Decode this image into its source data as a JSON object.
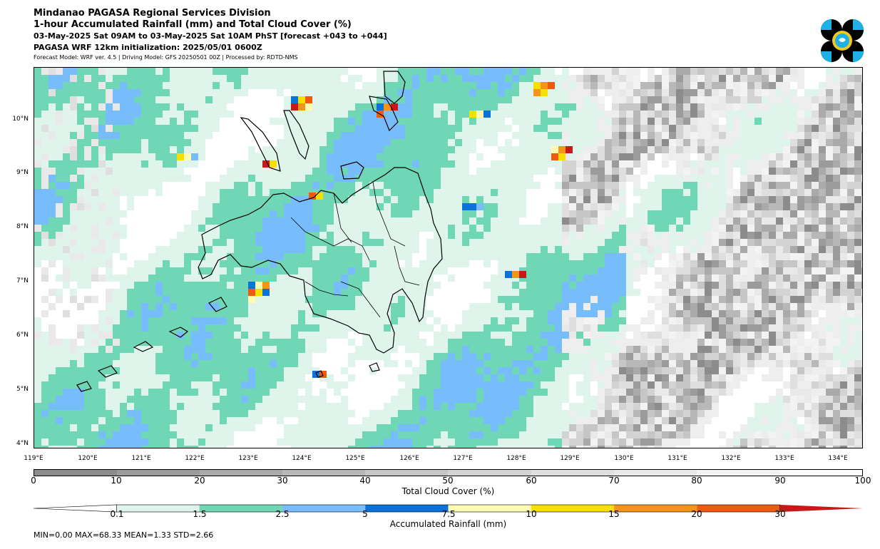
{
  "header": {
    "title_line1": "Mindanao PAGASA Regional Services Division",
    "title_line2": "1-hour Accumulated Rainfall (mm) and Total Cloud Cover (%)",
    "title_line3": "03-May-2025 Sat 09AM to 03-May-2025 Sat 10AM PhST [forecast +043 to +044]",
    "title_line4": "PAGASA WRF 12km initialization: 2025/05/01 0600Z",
    "title_line5": "Forecast Model: WRF ver. 4.5 | Driving Model: GFS 20250501 00Z | Processed by: RDTD-NMS"
  },
  "logo": {
    "icon": "pagasa-logo-icon",
    "colors": [
      "#000000",
      "#1eb1e6",
      "#f2c81f"
    ]
  },
  "map": {
    "latitude_labels": [
      "10°N",
      "9°N",
      "8°N",
      "7°N",
      "6°N",
      "5°N",
      "4°N"
    ],
    "longitude_labels": [
      "119°E",
      "120°E",
      "121°E",
      "122°E",
      "123°E",
      "124°E",
      "125°E",
      "126°E",
      "127°E",
      "128°E",
      "129°E",
      "130°E",
      "131°E",
      "132°E",
      "133°E",
      "134°E"
    ]
  },
  "cloud_colorbar": {
    "label": "Total Cloud Cover (%)",
    "ticks": [
      "0",
      "10",
      "20",
      "30",
      "40",
      "50",
      "60",
      "70",
      "80",
      "90",
      "100"
    ],
    "colors": [
      "#8c8c8c",
      "#9b9b9b",
      "#aaaaaa",
      "#b8b8b8",
      "#c6c6c6",
      "#d3d3d3",
      "#dfdfdf",
      "#e9e9e9",
      "#f3f3f3",
      "#fbfbfb"
    ]
  },
  "rain_colorbar": {
    "label": "Accumulated Rainfall (mm)",
    "ticks": [
      "0.1",
      "1.5",
      "2.5",
      "5",
      "7.5",
      "10",
      "15",
      "20",
      "30"
    ],
    "colors": [
      "#dff5ec",
      "#6fd7b5",
      "#77bdfb",
      "#0a72d8",
      "#fffcb2",
      "#f6e000",
      "#f4941a",
      "#ee5a10",
      "#c81818"
    ]
  },
  "stats": "MIN=0.00   MAX=68.33   MEAN=1.33   STD=2.66"
}
